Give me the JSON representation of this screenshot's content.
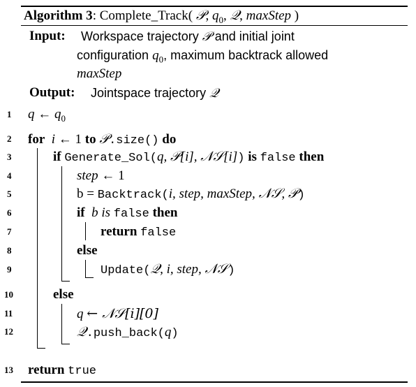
{
  "algorithm": {
    "label": "Algorithm 3",
    "name": "Complete_Track(",
    "params": [
      "𝒫",
      "q",
      "0",
      "𝒬",
      "maxStep",
      ")"
    ]
  },
  "input": {
    "keyword": "Input",
    "line1": "Workspace trajectory",
    "line1_sym": "𝒫",
    "line1_end": "and initial joint",
    "line2a": "configuration",
    "line2_q": "q",
    "line2_sub": "0",
    "line2b": ", maximum backtrack allowed",
    "line3": "maxStep"
  },
  "output": {
    "keyword": "Output",
    "text": "Jointspace trajectory",
    "sym": "𝒬"
  },
  "lines": {
    "n1": "1",
    "n2": "2",
    "n3": "3",
    "n4": "4",
    "n5": "5",
    "n6": "6",
    "n7": "7",
    "n8": "8",
    "n9": "9",
    "n10": "10",
    "n11": "11",
    "n12": "12",
    "n13": "13"
  },
  "code": {
    "l1_q": "q",
    "l1_arrow": "←",
    "l1_q0": "q",
    "l1_sub": "0",
    "l2_for": "for",
    "l2_i": "i",
    "l2_assign": "← 1",
    "l2_to": "to",
    "l2_P": "𝒫",
    "l2_size": ".size()",
    "l2_do": "do",
    "l3_if": "if",
    "l3_fn": "Generate_Sol(",
    "l3_args": "q, 𝒫[i], 𝒩𝒮[i]",
    "l3_close": ")",
    "l3_is": "is",
    "l3_false": "false",
    "l3_then": "then",
    "l4_step": "step",
    "l4_assign": "← 1",
    "l5_b": "b =",
    "l5_fn": "Backtrack(",
    "l5_args": "i, step, maxStep, 𝒩𝒮, 𝒫",
    "l5_close": ")",
    "l6_if": "if",
    "l6_cond": "b is",
    "l6_false": "false",
    "l6_then": "then",
    "l7_return": "return",
    "l7_false": "false",
    "l8_else": "else",
    "l9_fn": "Update(",
    "l9_args": "𝒬, i, step, 𝒩𝒮",
    "l9_close": ")",
    "l10_else": "else",
    "l11_q": "q",
    "l11_rest": "← 𝒩𝒮[i][0]",
    "l12_Q": "𝒬",
    "l12_fn": ".push_back(",
    "l12_q": "q",
    "l12_close": ")",
    "l13_return": "return",
    "l13_true": "true"
  }
}
